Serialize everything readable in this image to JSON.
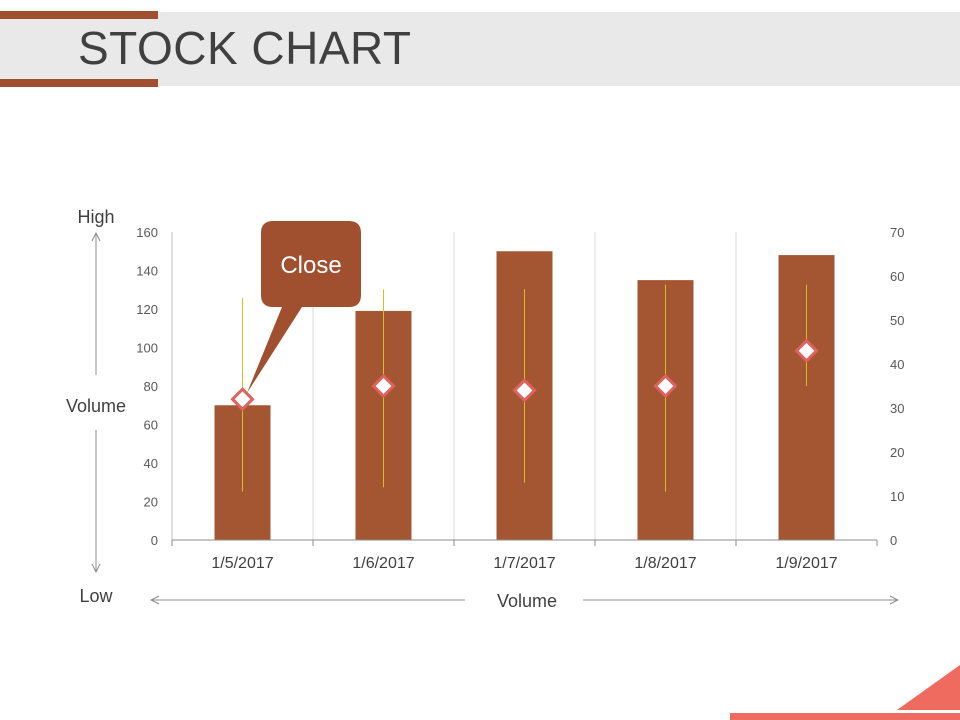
{
  "slide": {
    "title": "STOCK CHART"
  },
  "colors": {
    "accent": "#a0502f",
    "bar": "#a45633",
    "marker_edge": "#e0615d",
    "whisker": "#d4c01e",
    "title_band": "#e9e9e9",
    "corner": "#ef6b5f",
    "axis_text": "#595959"
  },
  "annotations": {
    "callout": "Close",
    "left_high": "High",
    "left_mid": "Volume",
    "left_low": "Low",
    "bottom_label": "Volume"
  },
  "chart_data": {
    "type": "bar",
    "categories": [
      "1/5/2017",
      "1/6/2017",
      "1/7/2017",
      "1/8/2017",
      "1/9/2017"
    ],
    "volume": [
      70,
      119,
      150,
      135,
      148
    ],
    "high": [
      55,
      57,
      57,
      58,
      58
    ],
    "low": [
      11,
      12,
      13,
      11,
      35
    ],
    "close": [
      32,
      35,
      34,
      35,
      43
    ],
    "left_axis": {
      "ylim": [
        0,
        160
      ],
      "ticks": [
        0,
        20,
        40,
        60,
        80,
        100,
        120,
        140,
        160
      ]
    },
    "right_axis": {
      "ylim": [
        0,
        70
      ],
      "ticks": [
        0,
        10,
        20,
        30,
        40,
        50,
        60,
        70
      ]
    },
    "grid": "vertical category dividers"
  }
}
